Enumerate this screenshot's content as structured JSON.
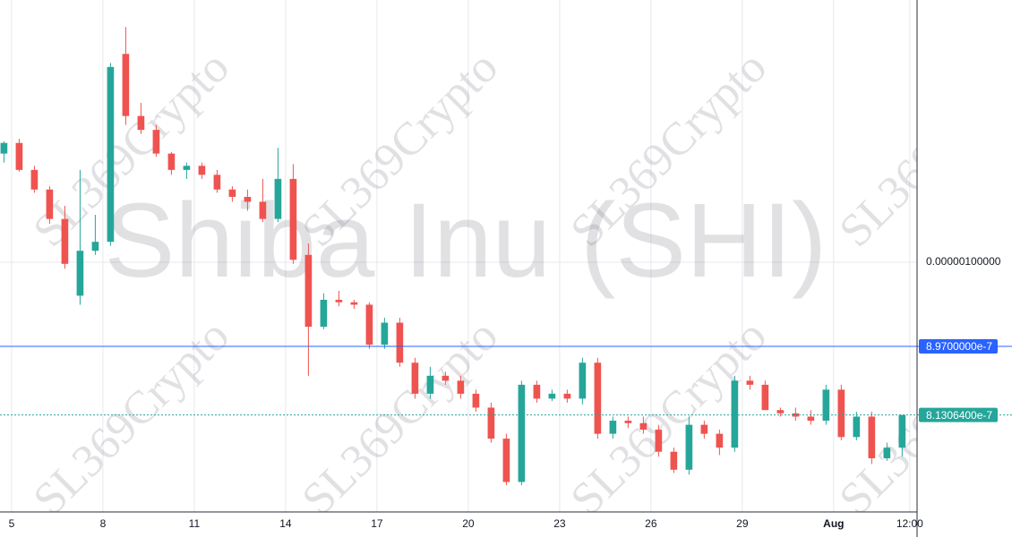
{
  "chart_data": {
    "type": "candlestick",
    "watermark": "Shiba Inu (SHI)",
    "overlay_watermark": "SL369Crypto",
    "x": [
      4.75,
      5.25,
      5.75,
      6.25,
      6.75,
      7.25,
      7.75,
      8.25,
      8.75,
      9.25,
      9.75,
      10.25,
      10.75,
      11.25,
      11.75,
      12.25,
      12.75,
      13.25,
      13.75,
      14.25,
      14.75,
      15.25,
      15.75,
      16.25,
      16.75,
      17.25,
      17.75,
      18.25,
      18.75,
      19.25,
      19.75,
      20.25,
      20.75,
      21.25,
      21.75,
      22.25,
      22.75,
      23.25,
      23.75,
      24.25,
      24.75,
      25.25,
      25.75,
      26.25,
      26.75,
      27.25,
      27.75,
      28.25,
      28.75,
      29.25,
      29.75,
      30.25,
      30.75,
      31.25,
      31.75,
      32.25,
      32.75,
      33.25,
      33.75,
      34.25
    ],
    "open": [
      1.133e-06,
      1.146e-06,
      1.113e-06,
      1.089e-06,
      1.053e-06,
      9.59e-07,
      1.014e-06,
      1.025e-06,
      1.255e-06,
      1.179e-06,
      1.162e-06,
      1.133e-06,
      1.113e-06,
      1.118e-06,
      1.107e-06,
      1.089e-06,
      1.08e-06,
      1.074e-06,
      1.053e-06,
      1.102e-06,
      1.009e-06,
      9.21e-07,
      9.54e-07,
      9.51e-07,
      9.48e-07,
      8.99e-07,
      9.26e-07,
      8.77e-07,
      8.39e-07,
      8.61e-07,
      8.55e-07,
      8.39e-07,
      8.22e-07,
      7.84e-07,
      7.31e-07,
      8.5e-07,
      8.33e-07,
      8.39e-07,
      8.33e-07,
      8.77e-07,
      7.9e-07,
      8.06e-07,
      8.03e-07,
      7.95e-07,
      7.68e-07,
      7.46e-07,
      8.01e-07,
      7.9e-07,
      7.73e-07,
      8.55e-07,
      8.5e-07,
      8.19e-07,
      8.15e-07,
      8.11e-07,
      8.06e-07,
      8.44e-07,
      7.86e-07,
      8.11e-07,
      7.6e-07,
      7.73e-07
    ],
    "high": [
      1.148e-06,
      1.151e-06,
      1.118e-06,
      1.093e-06,
      1.069e-06,
      1.113e-06,
      1.058e-06,
      1.244e-06,
      1.288e-06,
      1.195e-06,
      1.168e-06,
      1.135e-06,
      1.122e-06,
      1.122e-06,
      1.113e-06,
      1.093e-06,
      1.089e-06,
      1.102e-06,
      1.14e-06,
      1.12e-06,
      1.023e-06,
      9.62e-07,
      9.65e-07,
      9.54e-07,
      9.51e-07,
      9.32e-07,
      9.32e-07,
      8.83e-07,
      8.72e-07,
      8.66e-07,
      8.61e-07,
      8.44e-07,
      8.28e-07,
      7.9e-07,
      8.55e-07,
      8.55e-07,
      8.44e-07,
      8.44e-07,
      8.83e-07,
      8.83e-07,
      8.11e-07,
      8.11e-07,
      8.11e-07,
      8.01e-07,
      7.73e-07,
      8.11e-07,
      8.06e-07,
      7.95e-07,
      8.61e-07,
      8.61e-07,
      8.55e-07,
      8.22e-07,
      8.22e-07,
      8.19e-07,
      8.5e-07,
      8.5e-07,
      8.17e-07,
      8.17e-07,
      7.79e-07,
      8.11e-07
    ],
    "low": [
      1.122e-06,
      1.111e-06,
      1.085e-06,
      1.047e-06,
      9.92e-07,
      9.48e-07,
      1.009e-06,
      1.02e-06,
      1.168e-06,
      1.157e-06,
      1.129e-06,
      1.107e-06,
      1.102e-06,
      1.102e-06,
      1.085e-06,
      1.074e-06,
      1.063e-06,
      1.049e-06,
      1.049e-06,
      9.98e-07,
      8.61e-07,
      9.18e-07,
      9.46e-07,
      9.43e-07,
      8.94e-07,
      8.94e-07,
      8.72e-07,
      8.33e-07,
      8.33e-07,
      8.5e-07,
      8.33e-07,
      8.17e-07,
      7.79e-07,
      7.27e-07,
      7.27e-07,
      8.28e-07,
      8.3e-07,
      8.28e-07,
      8.26e-07,
      7.84e-07,
      7.84e-07,
      7.97e-07,
      7.9e-07,
      7.62e-07,
      7.42e-07,
      7.4e-07,
      7.84e-07,
      7.64e-07,
      7.68e-07,
      8.44e-07,
      8.19e-07,
      8.11e-07,
      8.06e-07,
      8.01e-07,
      8.01e-07,
      7.82e-07,
      7.82e-07,
      7.53e-07,
      7.57e-07,
      7.62e-07
    ],
    "close": [
      1.146e-06,
      1.113e-06,
      1.089e-06,
      1.053e-06,
      9.98e-07,
      1.014e-06,
      1.025e-06,
      1.239e-06,
      1.179e-06,
      1.162e-06,
      1.133e-06,
      1.113e-06,
      1.118e-06,
      1.107e-06,
      1.089e-06,
      1.08e-06,
      1.074e-06,
      1.053e-06,
      1.102e-06,
      1.003e-06,
      9.21e-07,
      9.54e-07,
      9.51e-07,
      9.48e-07,
      8.99e-07,
      9.26e-07,
      8.77e-07,
      8.39e-07,
      8.61e-07,
      8.55e-07,
      8.39e-07,
      8.22e-07,
      7.84e-07,
      7.31e-07,
      8.5e-07,
      8.33e-07,
      8.39e-07,
      8.33e-07,
      8.77e-07,
      7.9e-07,
      8.06e-07,
      8.03e-07,
      7.95e-07,
      7.68e-07,
      7.46e-07,
      8.01e-07,
      7.9e-07,
      7.73e-07,
      8.55e-07,
      8.5e-07,
      8.19e-07,
      8.15e-07,
      8.11e-07,
      8.06e-07,
      8.44e-07,
      7.86e-07,
      8.11e-07,
      7.6e-07,
      7.73e-07,
      8.13064e-07
    ],
    "up_color": "#26a69a",
    "down_color": "#ef5350",
    "xlim": [
      4.62,
      34.74
    ],
    "ylim": [
      6.943e-07,
      1.321e-06
    ],
    "xticks": [
      5,
      8,
      11,
      14,
      17,
      20,
      23,
      26,
      29,
      {
        "value": 32,
        "label": "Aug"
      },
      {
        "value": 34.5,
        "label": "12:00"
      }
    ],
    "yticks": [
      {
        "value": 1e-06,
        "label": "0.00000100000"
      }
    ],
    "grid": true,
    "price_lines": [
      {
        "value": 8.97e-07,
        "label": "8.9700000e-7",
        "color": "#2962ff",
        "style": "solid"
      },
      {
        "value": 8.13064e-07,
        "label": "8.1306400e-7",
        "color": "#26a69a",
        "style": "dotted"
      }
    ]
  }
}
